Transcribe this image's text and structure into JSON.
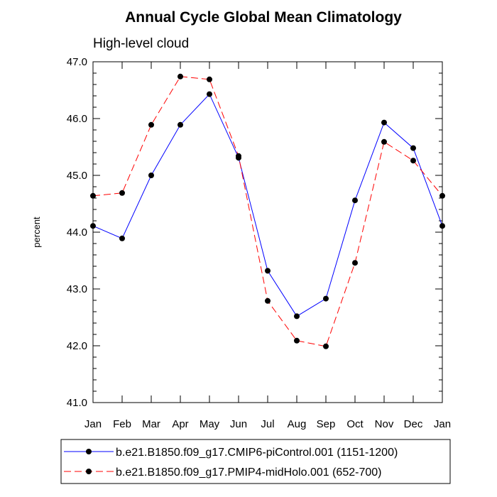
{
  "chart_data": {
    "type": "line",
    "title": "Annual Cycle Global Mean Climatology",
    "subtitle": "High-level cloud",
    "xlabel": "",
    "ylabel": "percent",
    "categories": [
      "Jan",
      "Feb",
      "Mar",
      "Apr",
      "May",
      "Jun",
      "Jul",
      "Aug",
      "Sep",
      "Oct",
      "Nov",
      "Dec",
      "Jan"
    ],
    "ylim": [
      41.0,
      47.0
    ],
    "yticks": [
      41.0,
      42.0,
      43.0,
      44.0,
      45.0,
      46.0,
      47.0
    ],
    "ytick_labels": [
      "41.0",
      "42.0",
      "43.0",
      "44.0",
      "45.0",
      "46.0",
      "47.0"
    ],
    "series": [
      {
        "name": "b.e21.B1850.f09_g17.CMIP6-piControl.001 (1151-1200)",
        "color": "#0000ff",
        "dash": "solid",
        "values": [
          44.11,
          43.89,
          45.0,
          45.89,
          46.43,
          45.31,
          43.32,
          42.52,
          42.83,
          44.56,
          45.93,
          45.48,
          44.11
        ]
      },
      {
        "name": "b.e21.B1850.f09_g17.PMIP4-midHolo.001 (652-700)",
        "color": "#ff0000",
        "dash": "dashed",
        "values": [
          44.64,
          44.69,
          45.89,
          46.74,
          46.69,
          45.34,
          42.79,
          42.09,
          41.99,
          43.46,
          45.59,
          45.26,
          44.64
        ]
      }
    ],
    "legend": "bottom"
  }
}
